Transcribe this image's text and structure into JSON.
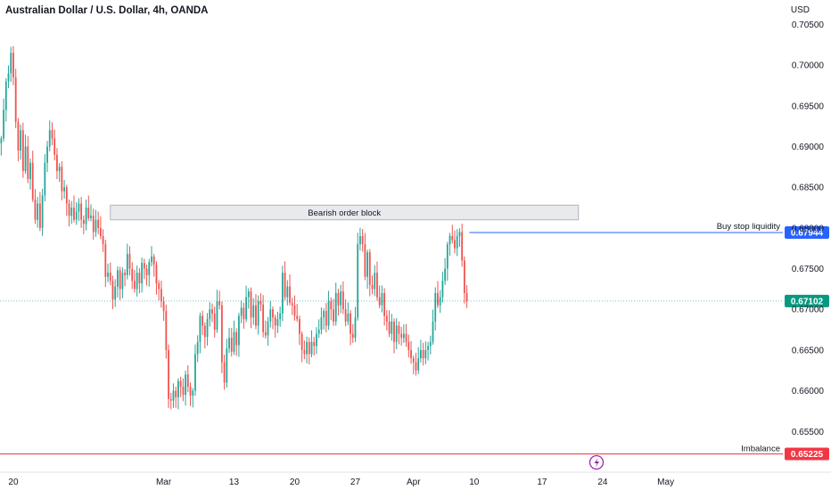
{
  "header": {
    "title": "Australian Dollar / U.S. Dollar, 4h, OANDA",
    "currency": "USD"
  },
  "colors": {
    "bull": "#26a69a",
    "bear": "#ef5350",
    "line_blue": "#2962ff",
    "price_badge": "#089981",
    "imbalance": "#f23645"
  },
  "chart_data": {
    "type": "candlestick",
    "title": "Australian Dollar / U.S. Dollar, 4h, OANDA",
    "ylim": [
      0.65,
      0.708
    ],
    "y_ticks": [
      "0.70500",
      "0.70000",
      "0.69500",
      "0.69000",
      "0.68500",
      "0.68000",
      "0.67500",
      "0.67000",
      "0.66500",
      "0.66000",
      "0.65500"
    ],
    "y_tick_values": [
      0.705,
      0.7,
      0.695,
      0.69,
      0.685,
      0.68,
      0.675,
      0.67,
      0.665,
      0.66,
      0.655
    ],
    "x_ticks": [
      "20",
      "Mar",
      "13",
      "20",
      "27",
      "Apr",
      "10",
      "17",
      "24",
      "May"
    ],
    "x_tick_bars": [
      5,
      67,
      96,
      121,
      146,
      170,
      195,
      223,
      248,
      274
    ],
    "total_bars": 300,
    "closes": [
      0.691,
      0.6945,
      0.698,
      0.699,
      0.7015,
      0.6985,
      0.693,
      0.6895,
      0.692,
      0.687,
      0.69,
      0.686,
      0.688,
      0.6835,
      0.681,
      0.683,
      0.68,
      0.684,
      0.688,
      0.69,
      0.692,
      0.691,
      0.689,
      0.687,
      0.6875,
      0.6845,
      0.685,
      0.683,
      0.6815,
      0.6825,
      0.681,
      0.682,
      0.683,
      0.681,
      0.6805,
      0.6825,
      0.6812,
      0.6815,
      0.6795,
      0.681,
      0.68,
      0.679,
      0.678,
      0.674,
      0.6745,
      0.6735,
      0.6712,
      0.6728,
      0.6748,
      0.6725,
      0.6745,
      0.6742,
      0.6768,
      0.675,
      0.6735,
      0.6725,
      0.6745,
      0.6732,
      0.6757,
      0.675,
      0.6742,
      0.6758,
      0.6765,
      0.6755,
      0.6732,
      0.6725,
      0.671,
      0.6698,
      0.665,
      0.659,
      0.6588,
      0.66,
      0.6592,
      0.6612,
      0.6605,
      0.6595,
      0.662,
      0.6605,
      0.6594,
      0.66,
      0.6645,
      0.666,
      0.6692,
      0.668,
      0.6666,
      0.6688,
      0.67,
      0.6695,
      0.6675,
      0.671,
      0.6705,
      0.6635,
      0.661,
      0.6652,
      0.6665,
      0.6648,
      0.6672,
      0.6656,
      0.6692,
      0.6702,
      0.6688,
      0.6715,
      0.6722,
      0.669,
      0.6705,
      0.668,
      0.671,
      0.6706,
      0.6672,
      0.6668,
      0.6685,
      0.67,
      0.669,
      0.668,
      0.6688,
      0.6695,
      0.6745,
      0.6715,
      0.6728,
      0.6708,
      0.6705,
      0.6692,
      0.6688,
      0.667,
      0.665,
      0.6645,
      0.666,
      0.6645,
      0.666,
      0.6655,
      0.667,
      0.6675,
      0.669,
      0.6698,
      0.668,
      0.671,
      0.67,
      0.6685,
      0.672,
      0.6705,
      0.6722,
      0.67,
      0.6685,
      0.6695,
      0.667,
      0.6665,
      0.669,
      0.678,
      0.679,
      0.678,
      0.674,
      0.677,
      0.673,
      0.6725,
      0.6745,
      0.6715,
      0.6705,
      0.672,
      0.6692,
      0.6685,
      0.667,
      0.6685,
      0.666,
      0.668,
      0.667,
      0.6665,
      0.667,
      0.666,
      0.665,
      0.664,
      0.6635,
      0.6625,
      0.664,
      0.665,
      0.664,
      0.665,
      0.6655,
      0.666,
      0.6685,
      0.672,
      0.6705,
      0.6715,
      0.6735,
      0.675,
      0.678,
      0.679,
      0.6785,
      0.6775,
      0.679,
      0.6795,
      0.676,
      0.672,
      0.671
    ],
    "buy_stop_liquidity": {
      "label": "Buy stop liquidity",
      "price": "0.67944"
    },
    "bearish_order_block": {
      "label": "Bearish order block",
      "price_top": 0.6828,
      "price_bottom": 0.681,
      "bar_start": 45,
      "bar_end": 238
    },
    "current_price": "0.67102",
    "imbalance": {
      "label": "Imbalance",
      "price": "0.65225"
    }
  }
}
